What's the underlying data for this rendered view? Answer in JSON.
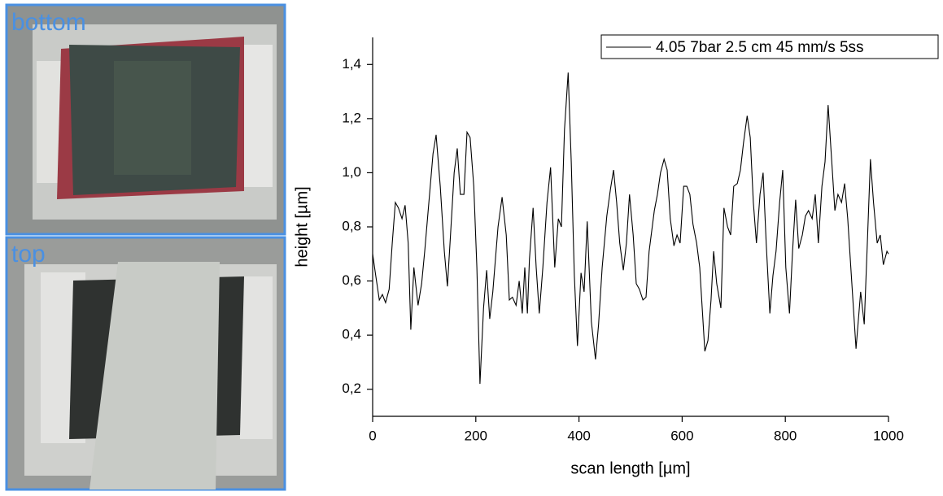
{
  "photos": {
    "labels": [
      "bottom",
      "top"
    ]
  },
  "chart_data": {
    "type": "line",
    "x_label": "scan length [µm]",
    "y_label": "height [µm]",
    "xlim": [
      0,
      1000
    ],
    "xticks": [
      0,
      200,
      400,
      600,
      800,
      1000
    ],
    "ylim": [
      0.1,
      1.5
    ],
    "yticks": [
      {
        "value": 0.2,
        "label": "0,2"
      },
      {
        "value": 0.4,
        "label": "0,4"
      },
      {
        "value": 0.6,
        "label": "0,6"
      },
      {
        "value": 0.8,
        "label": "0,8"
      },
      {
        "value": 1.0,
        "label": "1,0"
      },
      {
        "value": 1.2,
        "label": "1,2"
      },
      {
        "value": 1.4,
        "label": "1,4"
      }
    ],
    "legend": "top-right",
    "series": [
      {
        "name": "4.05 7bar 2.5 cm 45 mm/s 5ss",
        "color": "#000000",
        "x": [
          0,
          6,
          13,
          19,
          25,
          32,
          38,
          44,
          50,
          57,
          63,
          69,
          74,
          80,
          88,
          95,
          101,
          109,
          117,
          123,
          131,
          139,
          145,
          151,
          158,
          164,
          170,
          177,
          183,
          189,
          196,
          202,
          208,
          215,
          221,
          227,
          233,
          243,
          251,
          259,
          265,
          271,
          278,
          284,
          290,
          295,
          300,
          304,
          311,
          317,
          323,
          330,
          338,
          345,
          353,
          360,
          366,
          372,
          379,
          385,
          391,
          397,
          404,
          410,
          416,
          424,
          432,
          438,
          445,
          454,
          461,
          467,
          473,
          479,
          486,
          492,
          498,
          505,
          511,
          517,
          524,
          530,
          536,
          546,
          552,
          558,
          565,
          571,
          577,
          584,
          590,
          596,
          603,
          609,
          615,
          621,
          628,
          634,
          644,
          650,
          656,
          661,
          667,
          675,
          681,
          688,
          694,
          700,
          707,
          713,
          719,
          726,
          732,
          738,
          744,
          751,
          757,
          763,
          770,
          776,
          782,
          789,
          795,
          801,
          808,
          814,
          820,
          826,
          833,
          839,
          845,
          852,
          858,
          864,
          871,
          877,
          883,
          890,
          896,
          902,
          909,
          915,
          921,
          927,
          937,
          946,
          953,
          959,
          965,
          971,
          978,
          984,
          990,
          997,
          1000
        ],
        "values": [
          0.7,
          0.62,
          0.53,
          0.55,
          0.52,
          0.57,
          0.74,
          0.89,
          0.87,
          0.83,
          0.88,
          0.74,
          0.42,
          0.65,
          0.51,
          0.59,
          0.71,
          0.89,
          1.07,
          1.14,
          0.95,
          0.71,
          0.58,
          0.77,
          1.0,
          1.09,
          0.92,
          0.92,
          1.15,
          1.13,
          0.95,
          0.65,
          0.22,
          0.5,
          0.64,
          0.46,
          0.56,
          0.8,
          0.91,
          0.77,
          0.53,
          0.54,
          0.51,
          0.6,
          0.48,
          0.65,
          0.48,
          0.68,
          0.87,
          0.65,
          0.48,
          0.65,
          0.89,
          1.02,
          0.65,
          0.83,
          0.8,
          1.16,
          1.37,
          1.04,
          0.62,
          0.36,
          0.63,
          0.56,
          0.82,
          0.45,
          0.31,
          0.44,
          0.65,
          0.84,
          0.94,
          1.01,
          0.89,
          0.74,
          0.64,
          0.74,
          0.92,
          0.77,
          0.59,
          0.57,
          0.53,
          0.54,
          0.71,
          0.86,
          0.92,
          1.0,
          1.05,
          1.01,
          0.83,
          0.73,
          0.77,
          0.74,
          0.95,
          0.95,
          0.92,
          0.81,
          0.74,
          0.65,
          0.34,
          0.38,
          0.53,
          0.71,
          0.59,
          0.5,
          0.87,
          0.8,
          0.77,
          0.95,
          0.96,
          1.01,
          1.11,
          1.21,
          1.13,
          0.89,
          0.74,
          0.92,
          1.0,
          0.74,
          0.48,
          0.62,
          0.71,
          0.89,
          1.01,
          0.65,
          0.48,
          0.71,
          0.9,
          0.72,
          0.77,
          0.84,
          0.86,
          0.83,
          0.92,
          0.74,
          0.95,
          1.04,
          1.25,
          1.04,
          0.86,
          0.92,
          0.89,
          0.96,
          0.83,
          0.65,
          0.35,
          0.56,
          0.44,
          0.74,
          1.05,
          0.89,
          0.74,
          0.77,
          0.66,
          0.71,
          0.7
        ]
      }
    ]
  }
}
